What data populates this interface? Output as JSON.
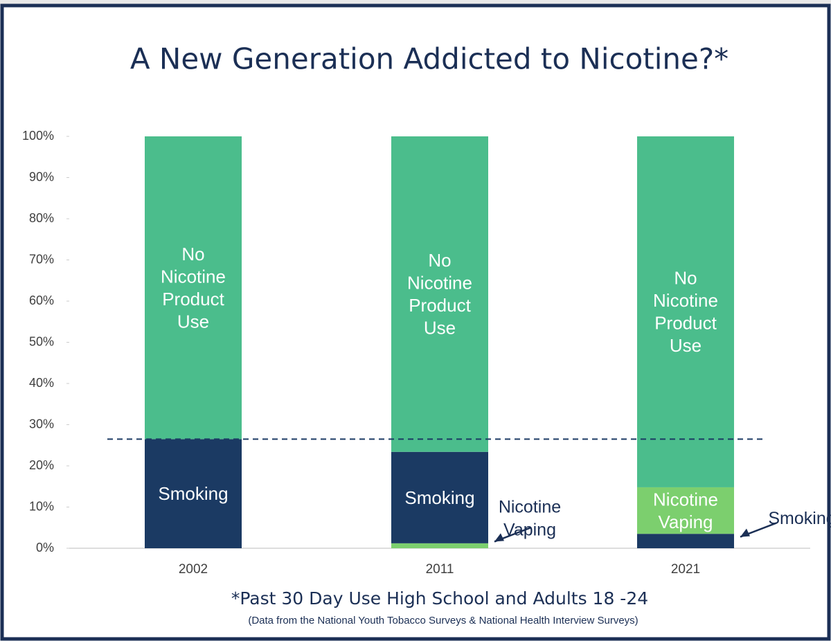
{
  "chart_data": {
    "type": "stacked_bar",
    "title": "A New Generation Addicted to Nicotine?*",
    "subtitle": "*Past 30 Day Use High School and Adults 18 -24",
    "source": "(Data from the National Youth Tobacco Surveys & National Health Interview Surveys)",
    "categories": [
      "2002",
      "2011",
      "2021"
    ],
    "series": [
      {
        "name": "Smoking",
        "color": "#1b3a63",
        "values": [
          26.5,
          22.2,
          3.5
        ]
      },
      {
        "name": "Nicotine Vaping",
        "color": "#7ccf6e",
        "values": [
          0,
          1.2,
          11.3
        ]
      },
      {
        "name": "No Nicotine Product Use",
        "color": "#4bbd8c",
        "values": [
          73.5,
          76.6,
          85.2
        ]
      }
    ],
    "stack_order": [
      [
        0,
        1,
        2
      ],
      [
        1,
        0,
        2
      ],
      [
        0,
        1,
        2
      ]
    ],
    "reference_line": 26.5,
    "ylim": [
      0,
      100
    ],
    "yticks": [
      {
        "value": 0,
        "label": "0%"
      },
      {
        "value": 10,
        "label": "10%"
      },
      {
        "value": 20,
        "label": "20%"
      },
      {
        "value": 30,
        "label": "30%"
      },
      {
        "value": 40,
        "label": "40%"
      },
      {
        "value": 50,
        "label": "50%"
      },
      {
        "value": 60,
        "label": "60%"
      },
      {
        "value": 70,
        "label": "70%"
      },
      {
        "value": 80,
        "label": "80%"
      },
      {
        "value": 90,
        "label": "90%"
      },
      {
        "value": 100,
        "label": "100%"
      }
    ]
  }
}
